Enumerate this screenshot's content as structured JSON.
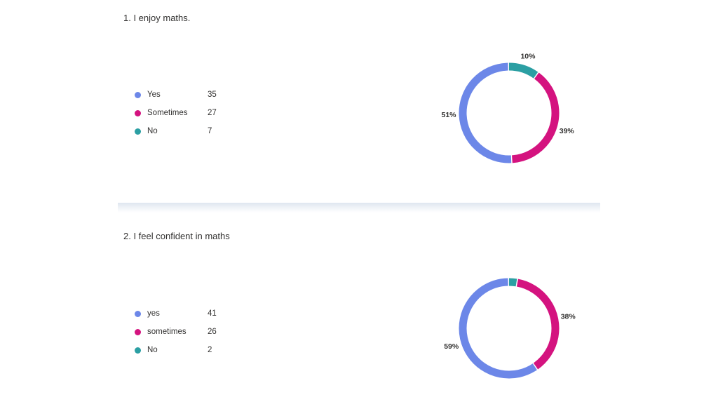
{
  "chart_data": [
    {
      "type": "pie",
      "title": "1. I enjoy maths.",
      "categories": [
        "Yes",
        "Sometimes",
        "No"
      ],
      "values": [
        35,
        27,
        7
      ],
      "percent_labels": [
        "51%",
        "39%",
        "10%"
      ],
      "colors": [
        "#6c87e8",
        "#d4137f",
        "#2b9fa3"
      ],
      "donut": true
    },
    {
      "type": "pie",
      "title": "2. I feel confident in maths",
      "categories": [
        "yes",
        "sometimes",
        "No"
      ],
      "values": [
        41,
        26,
        2
      ],
      "percent_labels": [
        "59%",
        "38%",
        ""
      ],
      "colors": [
        "#6c87e8",
        "#d4137f",
        "#2b9fa3"
      ],
      "donut": true
    }
  ]
}
